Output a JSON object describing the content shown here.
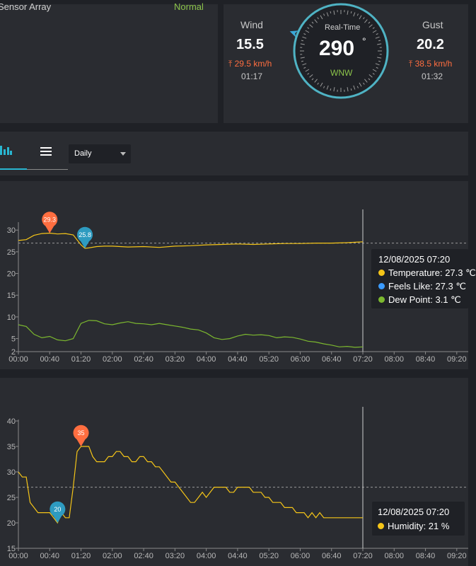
{
  "sensor": {
    "title": "Sensor Array",
    "status": "Normal"
  },
  "wind": {
    "label": "Wind",
    "value": "15.5",
    "max": "⤒ 29.5 km/h",
    "time": "01:17",
    "realtime_label": "Real-Time",
    "direction_value": "290",
    "degree_symbol": "°",
    "direction_text": "WNW",
    "gust_label": "Gust",
    "gust_value": "20.2",
    "gust_max": "⤒ 38.5 km/h",
    "gust_time": "01:32"
  },
  "toolbar": {
    "chart_icon": "bar-chart-icon",
    "menu_icon": "hamburger-icon",
    "period": {
      "selected": "Daily"
    }
  },
  "colors": {
    "temperature": "#f5c518",
    "feels_like": "#3b9bff",
    "dew_point": "#7cb82f",
    "humidity": "#f5c518",
    "max_marker": "#ff6e40",
    "min_marker": "#2e9bc0",
    "accent": "#29b6d1"
  },
  "chart_data": [
    {
      "type": "line",
      "x_ticks": [
        "00:00",
        "00:40",
        "01:20",
        "02:00",
        "02:40",
        "03:20",
        "04:00",
        "04:40",
        "05:20",
        "06:00",
        "06:40",
        "07:20",
        "08:00",
        "08:40",
        "09:20"
      ],
      "y_ticks": [
        "2",
        "5",
        "10",
        "15",
        "20",
        "25",
        "30"
      ],
      "ylim": [
        2,
        31.5
      ],
      "reference_line": 27,
      "series": [
        {
          "name": "Temperature",
          "x_minutes": [
            0,
            10,
            20,
            30,
            40,
            50,
            60,
            70,
            80,
            85,
            90,
            100,
            110,
            120,
            140,
            160,
            180,
            200,
            220,
            240,
            260,
            280,
            300,
            320,
            340,
            360,
            380,
            400,
            420,
            440
          ],
          "values": [
            27.6,
            27.8,
            28.8,
            29.2,
            29.3,
            29.1,
            29.2,
            28.9,
            26.6,
            25.8,
            25.9,
            26.2,
            26.3,
            26.3,
            26.1,
            26.2,
            26.0,
            26.3,
            26.4,
            26.6,
            26.7,
            26.8,
            26.7,
            26.8,
            26.9,
            26.9,
            27.0,
            27.0,
            27.1,
            27.3
          ]
        },
        {
          "name": "Dew Point",
          "x_minutes": [
            0,
            10,
            20,
            30,
            40,
            50,
            60,
            70,
            80,
            90,
            100,
            110,
            120,
            130,
            140,
            150,
            160,
            170,
            180,
            190,
            200,
            210,
            220,
            230,
            240,
            250,
            260,
            270,
            280,
            290,
            300,
            310,
            320,
            330,
            340,
            350,
            360,
            370,
            380,
            390,
            400,
            410,
            420,
            430,
            440
          ],
          "values": [
            8.2,
            7.8,
            6.0,
            5.2,
            5.5,
            4.7,
            4.5,
            5.0,
            8.5,
            9.2,
            9.1,
            8.4,
            8.2,
            8.6,
            8.9,
            8.5,
            8.4,
            8.2,
            8.5,
            8.2,
            7.9,
            7.6,
            7.2,
            7.0,
            6.3,
            5.2,
            4.8,
            5.0,
            5.6,
            6.0,
            5.8,
            5.9,
            5.7,
            5.2,
            5.4,
            5.3,
            4.9,
            4.4,
            4.2,
            3.8,
            3.5,
            3.1,
            3.2,
            3.0,
            3.1
          ]
        }
      ],
      "markers": [
        {
          "label": "29.3",
          "kind": "max",
          "x_minutes": 40,
          "value": 29.3
        },
        {
          "label": "25.8",
          "kind": "min",
          "x_minutes": 85,
          "value": 25.8
        }
      ],
      "cursor_minutes": 440,
      "tooltip": {
        "date": "12/08/2025 07:20",
        "rows": [
          "Temperature: 27.3 ℃",
          "Feels Like: 27.3 ℃",
          "Dew Point: 3.1 ℃"
        ]
      }
    },
    {
      "type": "line",
      "x_ticks": [
        "00:00",
        "00:40",
        "01:20",
        "02:00",
        "02:40",
        "03:20",
        "04:00",
        "04:40",
        "05:20",
        "06:00",
        "06:40",
        "07:20",
        "08:00",
        "08:40",
        "09:20"
      ],
      "y_ticks": [
        "15",
        "20",
        "25",
        "30",
        "35",
        "40"
      ],
      "ylim": [
        15,
        40
      ],
      "reference_line": 27,
      "series": [
        {
          "name": "Humidity",
          "x_minutes": [
            0,
            5,
            10,
            15,
            20,
            25,
            30,
            35,
            40,
            45,
            50,
            55,
            60,
            65,
            70,
            75,
            80,
            85,
            90,
            95,
            100,
            105,
            110,
            115,
            120,
            125,
            130,
            135,
            140,
            145,
            150,
            155,
            160,
            165,
            170,
            175,
            180,
            185,
            190,
            195,
            200,
            205,
            210,
            215,
            220,
            225,
            230,
            235,
            240,
            245,
            250,
            255,
            260,
            265,
            270,
            275,
            280,
            285,
            290,
            295,
            300,
            305,
            310,
            315,
            320,
            325,
            330,
            335,
            340,
            345,
            350,
            355,
            360,
            365,
            370,
            375,
            380,
            385,
            390,
            395,
            400,
            405,
            410,
            415,
            420,
            425,
            430,
            435,
            440
          ],
          "values": [
            30,
            29,
            29,
            24,
            23,
            22,
            22,
            22,
            22,
            21,
            20,
            22,
            21,
            21,
            27,
            34,
            35,
            35,
            35,
            33,
            32,
            32,
            32,
            33,
            33,
            34,
            34,
            33,
            33,
            32,
            32,
            33,
            33,
            32,
            32,
            31,
            31,
            30,
            29,
            28,
            28,
            27,
            26,
            25,
            24,
            24,
            25,
            26,
            25,
            26,
            27,
            27,
            27,
            27,
            26,
            26,
            27,
            27,
            27,
            27,
            26,
            26,
            26,
            25,
            25,
            24,
            24,
            24,
            23,
            23,
            23,
            22,
            22,
            22,
            21,
            22,
            21,
            22,
            21,
            21,
            21,
            21,
            21,
            21,
            21,
            21,
            21,
            21,
            21
          ]
        }
      ],
      "markers": [
        {
          "label": "35",
          "kind": "max",
          "x_minutes": 80,
          "value": 35
        },
        {
          "label": "20",
          "kind": "min",
          "x_minutes": 50,
          "value": 20
        }
      ],
      "cursor_minutes": 440,
      "tooltip": {
        "date": "12/08/2025 07:20",
        "rows": [
          "Humidity: 21 %"
        ]
      }
    }
  ]
}
